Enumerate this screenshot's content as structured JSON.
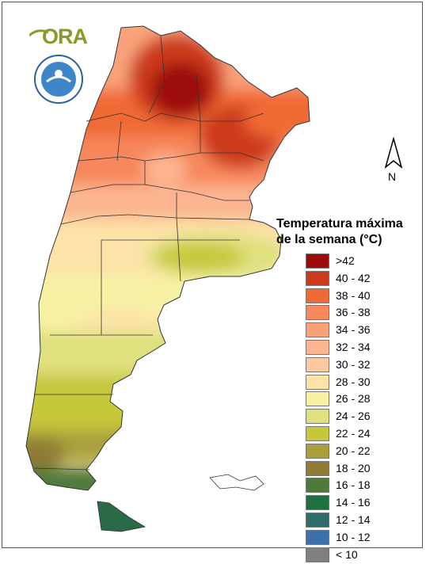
{
  "map": {
    "logo_text": "ORA",
    "north_label": "N",
    "legend_title_line1": "Temperatura máxima",
    "legend_title_line2": "de la semana (°C)",
    "legend": [
      {
        "label": ">42",
        "color": "#9e0a0a"
      },
      {
        "label": "40 - 42",
        "color": "#cc3a1e"
      },
      {
        "label": "38 - 40",
        "color": "#f06a36"
      },
      {
        "label": "36 - 38",
        "color": "#f7875c"
      },
      {
        "label": "34 - 36",
        "color": "#f9a27a"
      },
      {
        "label": "32 - 34",
        "color": "#fbb590"
      },
      {
        "label": "30 - 32",
        "color": "#fdc9a0"
      },
      {
        "label": "28 - 30",
        "color": "#fde3a8"
      },
      {
        "label": "26 - 28",
        "color": "#f7f1a4"
      },
      {
        "label": "24 - 26",
        "color": "#dfe07e"
      },
      {
        "label": "22 - 24",
        "color": "#c6c83a"
      },
      {
        "label": "20 - 22",
        "color": "#a9a03c"
      },
      {
        "label": "18 - 20",
        "color": "#8f7a36"
      },
      {
        "label": "16 - 18",
        "color": "#4e7a3c"
      },
      {
        "label": "14 - 16",
        "color": "#1e7040"
      },
      {
        "label": "12 - 14",
        "color": "#2f6b6a"
      },
      {
        "label": "10 - 12",
        "color": "#3d70a8"
      },
      {
        "label": "< 10",
        "color": "#808080"
      }
    ]
  }
}
